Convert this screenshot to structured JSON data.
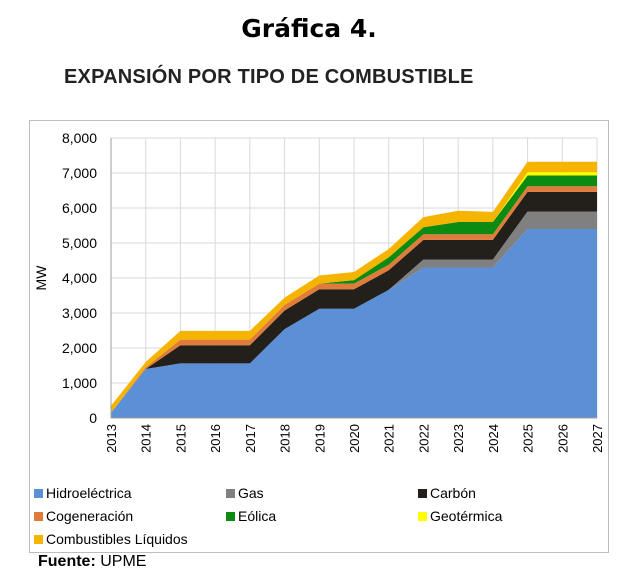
{
  "heading": "Gráfica 4.",
  "source": {
    "label": "Fuente:",
    "value": "UPME"
  },
  "chart_data": {
    "type": "area",
    "title": "EXPANSIÓN POR TIPO DE COMBUSTIBLE",
    "xlabel": "",
    "ylabel": "MW",
    "ylim": [
      0,
      8000
    ],
    "yticks": [
      "0",
      "1,000",
      "2,000",
      "3,000",
      "4,000",
      "5,000",
      "6,000",
      "7,000",
      "8,000"
    ],
    "x": [
      "2013",
      "2014",
      "2015",
      "2016",
      "2017",
      "2018",
      "2019",
      "2020",
      "2021",
      "2022",
      "2023",
      "2024",
      "2025",
      "2026",
      "2027"
    ],
    "grid": true,
    "stacked": true,
    "legend_position": "bottom",
    "series": [
      {
        "name": "Hidroeléctrica",
        "color": "#5B8FD6",
        "values": [
          150,
          1400,
          1560,
          1560,
          1560,
          2540,
          3120,
          3120,
          3660,
          4300,
          4300,
          4300,
          5400,
          5400,
          5400
        ]
      },
      {
        "name": "Gas",
        "color": "#808080",
        "values": [
          0,
          0,
          0,
          0,
          0,
          0,
          0,
          0,
          0,
          230,
          230,
          230,
          500,
          500,
          500
        ]
      },
      {
        "name": "Carbón",
        "color": "#231F1A",
        "values": [
          0,
          0,
          520,
          520,
          520,
          530,
          560,
          560,
          560,
          560,
          560,
          560,
          560,
          560,
          560
        ]
      },
      {
        "name": "Cogeneración",
        "color": "#E07B39",
        "values": [
          0,
          50,
          160,
          160,
          160,
          160,
          160,
          160,
          160,
          160,
          160,
          160,
          160,
          160,
          160
        ]
      },
      {
        "name": "Eólica",
        "color": "#0C8A12",
        "values": [
          0,
          0,
          0,
          0,
          0,
          0,
          0,
          100,
          210,
          200,
          350,
          350,
          310,
          310,
          310
        ]
      },
      {
        "name": "Geotérmica",
        "color": "#FFFF00",
        "values": [
          0,
          0,
          0,
          0,
          0,
          0,
          0,
          0,
          0,
          0,
          0,
          0,
          90,
          90,
          90
        ]
      },
      {
        "name": "Combustibles Líquidos",
        "color": "#F4B400",
        "values": [
          200,
          150,
          250,
          250,
          250,
          210,
          230,
          230,
          240,
          290,
          320,
          290,
          300,
          300,
          300
        ]
      }
    ]
  }
}
